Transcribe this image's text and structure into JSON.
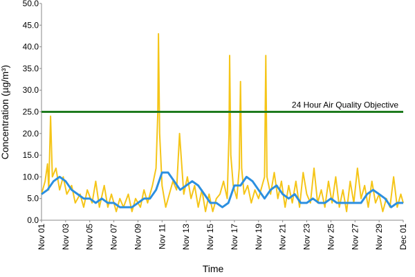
{
  "chart_data": {
    "type": "line",
    "xlabel": "Time",
    "ylabel": "Concentration (µg/m³)",
    "xlim": [
      0,
      30
    ],
    "xticks": [
      {
        "value": 0,
        "label": "Nov 01"
      },
      {
        "value": 2,
        "label": "Nov 03"
      },
      {
        "value": 4,
        "label": "Nov 05"
      },
      {
        "value": 6,
        "label": "Nov 07"
      },
      {
        "value": 8,
        "label": "Nov 09"
      },
      {
        "value": 10,
        "label": "Nov 11"
      },
      {
        "value": 12,
        "label": "Nov 13"
      },
      {
        "value": 14,
        "label": "Nov 15"
      },
      {
        "value": 16,
        "label": "Nov 17"
      },
      {
        "value": 18,
        "label": "Nov 19"
      },
      {
        "value": 20,
        "label": "Nov 21"
      },
      {
        "value": 22,
        "label": "Nov 23"
      },
      {
        "value": 24,
        "label": "Nov 25"
      },
      {
        "value": 26,
        "label": "Nov 27"
      },
      {
        "value": 28,
        "label": "Nov 29"
      },
      {
        "value": 30,
        "label": "Dec 01"
      }
    ],
    "ylim": [
      0,
      50
    ],
    "yticks": [
      {
        "value": 0,
        "label": "0.0"
      },
      {
        "value": 5,
        "label": "5.0"
      },
      {
        "value": 10,
        "label": "10.0"
      },
      {
        "value": 15,
        "label": "15.0"
      },
      {
        "value": 20,
        "label": "20.0"
      },
      {
        "value": 25,
        "label": "25.0"
      },
      {
        "value": 30,
        "label": "30.0"
      },
      {
        "value": 35,
        "label": "35.0"
      },
      {
        "value": 40,
        "label": "40.0"
      },
      {
        "value": 45,
        "label": "45.0"
      },
      {
        "value": 50,
        "label": "50.0"
      }
    ],
    "grid": false,
    "objective": {
      "value": 25,
      "label": "24 Hour Air Quality Objective",
      "color": "#1e7b1e"
    },
    "series": [
      {
        "color": "#f5c518",
        "x": [
          0,
          0.3,
          0.5,
          0.6,
          0.75,
          0.9,
          1.2,
          1.5,
          1.8,
          2.1,
          2.5,
          2.8,
          3.2,
          3.5,
          3.8,
          4.2,
          4.5,
          4.8,
          5.2,
          5.5,
          5.8,
          6.2,
          6.5,
          6.8,
          7.2,
          7.5,
          7.8,
          8.2,
          8.5,
          8.8,
          9.2,
          9.5,
          9.65,
          9.7,
          9.8,
          10.0,
          10.3,
          10.6,
          10.9,
          11.2,
          11.45,
          11.6,
          11.8,
          12.1,
          12.4,
          12.7,
          13.0,
          13.3,
          13.6,
          13.9,
          14.2,
          14.5,
          14.8,
          15.1,
          15.4,
          15.55,
          15.6,
          15.7,
          15.9,
          16.2,
          16.4,
          16.5,
          16.6,
          16.8,
          17.1,
          17.4,
          17.7,
          18.0,
          18.3,
          18.5,
          18.6,
          18.7,
          19.0,
          19.3,
          19.6,
          19.9,
          20.2,
          20.5,
          20.8,
          21.1,
          21.4,
          21.7,
          22.0,
          22.3,
          22.6,
          22.9,
          23.2,
          23.5,
          23.8,
          24.1,
          24.4,
          24.7,
          25.0,
          25.3,
          25.6,
          25.9,
          26.2,
          26.5,
          26.8,
          27.1,
          27.4,
          27.7,
          28.0,
          28.3,
          28.6,
          28.9,
          29.2,
          29.5,
          29.8,
          30
        ],
        "values": [
          6,
          9,
          13,
          7,
          24,
          10,
          12,
          7,
          10,
          6,
          8,
          4,
          6,
          3,
          7,
          4,
          9,
          3,
          8,
          3,
          6,
          2,
          5,
          3,
          6,
          2,
          5,
          3,
          7,
          4,
          8,
          12,
          25,
          43,
          20,
          8,
          3,
          6,
          9,
          7,
          20,
          14,
          6,
          10,
          5,
          8,
          3,
          7,
          2,
          6,
          2,
          5,
          6,
          9,
          5,
          20,
          38,
          15,
          8,
          5,
          12,
          32,
          12,
          6,
          8,
          4,
          7,
          5,
          8,
          10,
          38,
          10,
          6,
          11,
          5,
          9,
          3,
          8,
          4,
          9,
          3,
          11,
          6,
          4,
          12,
          4,
          7,
          3,
          9,
          4,
          10,
          3,
          7,
          2,
          9,
          4,
          12,
          5,
          8,
          3,
          9,
          4,
          6,
          2,
          5,
          3,
          10,
          3,
          6,
          4
        ]
      },
      {
        "color": "#2b8fe0",
        "x": [
          0,
          0.5,
          1,
          1.5,
          2,
          2.5,
          3,
          3.5,
          4,
          4.5,
          5,
          5.5,
          6,
          6.5,
          7,
          7.5,
          8,
          8.5,
          9,
          9.5,
          10,
          10.5,
          11,
          11.5,
          12,
          12.5,
          13,
          13.5,
          14,
          14.5,
          15,
          15.5,
          16,
          16.5,
          17,
          17.5,
          18,
          18.5,
          19,
          19.5,
          20,
          20.5,
          21,
          21.5,
          22,
          22.5,
          23,
          23.5,
          24,
          24.5,
          25,
          25.5,
          26,
          26.5,
          27,
          27.5,
          28,
          28.5,
          29,
          29.5,
          30
        ],
        "values": [
          6,
          7,
          9,
          10,
          9,
          7,
          6,
          5,
          5,
          4,
          5,
          4,
          4,
          3,
          3,
          3,
          4,
          5,
          5,
          7,
          11,
          11,
          9,
          7,
          8,
          9,
          8,
          6,
          4,
          4,
          3,
          4,
          8,
          8,
          10,
          9,
          7,
          5,
          7,
          8,
          6,
          5,
          6,
          4,
          4,
          5,
          4,
          4,
          5,
          4,
          4,
          4,
          4,
          4,
          6,
          7,
          6,
          5,
          3,
          4,
          4
        ]
      }
    ]
  }
}
